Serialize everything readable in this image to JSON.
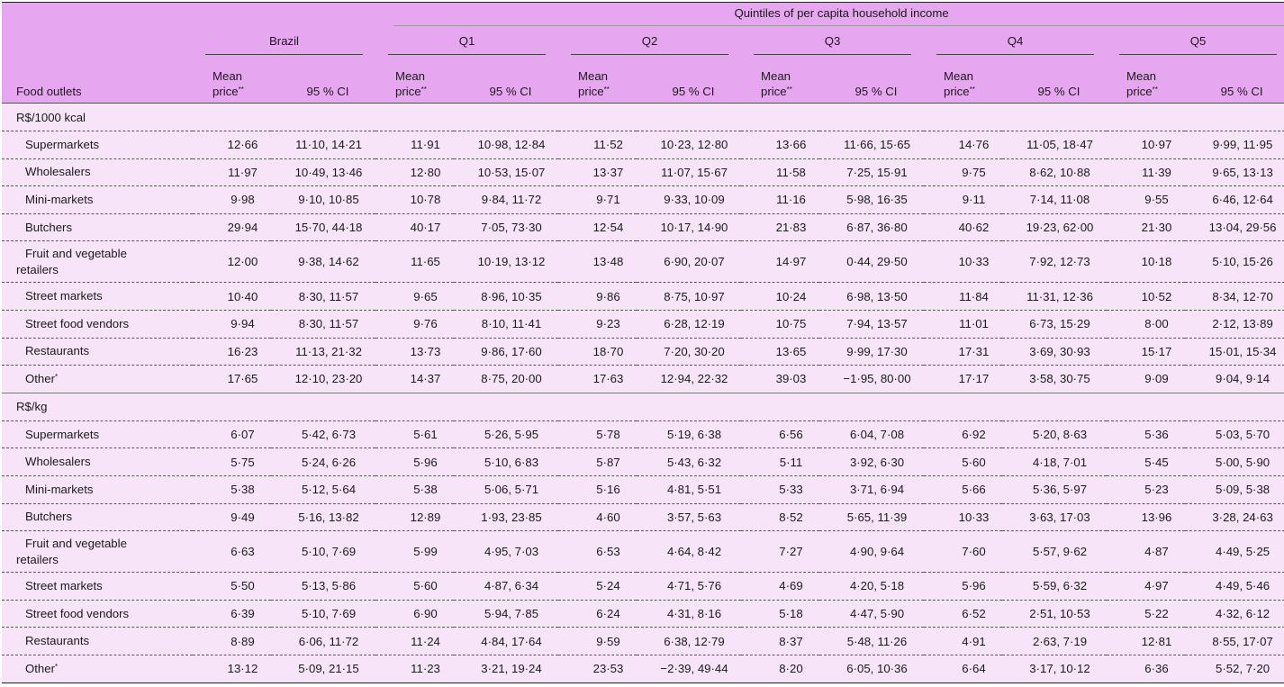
{
  "header": {
    "quintiles_title": "Quintiles of per capita household income",
    "first_col": "Food outlets",
    "groups": [
      "Brazil",
      "Q1",
      "Q2",
      "Q3",
      "Q4",
      "Q5"
    ],
    "mean_line1": "Mean",
    "mean_line2": "price",
    "mean_sup": "**",
    "ci": "95 % CI"
  },
  "sections": [
    {
      "title": "R$/1000 kcal",
      "rows": [
        {
          "name": "Supermarkets",
          "cells": [
            "12·66",
            "11·10, 14·21",
            "11·91",
            "10·98, 12·84",
            "11·52",
            "10·23, 12·80",
            "13·66",
            "11·66, 15·65",
            "14·76",
            "11·05, 18·47",
            "10·97",
            "9·99, 11·95"
          ]
        },
        {
          "name": "Wholesalers",
          "cells": [
            "11·97",
            "10·49, 13·46",
            "12·80",
            "10·53, 15·07",
            "13·37",
            "11·07, 15·67",
            "11·58",
            "7·25, 15·91",
            "9·75",
            "8·62, 10·88",
            "11·39",
            "9·65, 13·13"
          ]
        },
        {
          "name": "Mini-markets",
          "cells": [
            "9·98",
            "9·10, 10·85",
            "10·78",
            "9·84, 11·72",
            "9·71",
            "9·33, 10·09",
            "11·16",
            "5·98, 16·35",
            "9·11",
            "7·14, 11·08",
            "9·55",
            "6·46, 12·64"
          ]
        },
        {
          "name": "Butchers",
          "cells": [
            "29·94",
            "15·70, 44·18",
            "40·17",
            "7·05, 73·30",
            "12·54",
            "10·17, 14·90",
            "21·83",
            "6·87, 36·80",
            "40·62",
            "19·23, 62·00",
            "21·30",
            "13·04, 29·56"
          ]
        },
        {
          "name": "Fruit and vegetable",
          "name2": "retailers",
          "cells": [
            "12·00",
            "9·38, 14·62",
            "11·65",
            "10·19, 13·12",
            "13·48",
            "6·90, 20·07",
            "14·97",
            "0·44, 29·50",
            "10·33",
            "7·92, 12·73",
            "10·18",
            "5·10, 15·26"
          ]
        },
        {
          "name": "Street markets",
          "cells": [
            "10·40",
            "8·30, 11·57",
            "9·65",
            "8·96, 10·35",
            "9·86",
            "8·75, 10·97",
            "10·24",
            "6·98, 13·50",
            "11·84",
            "11·31, 12·36",
            "10·52",
            "8·34, 12·70"
          ]
        },
        {
          "name": "Street food vendors",
          "cells": [
            "9·94",
            "8·30, 11·57",
            "9·76",
            "8·10, 11·41",
            "9·23",
            "6·28, 12·19",
            "10·75",
            "7·94, 13·57",
            "11·01",
            "6·73, 15·29",
            "8·00",
            "2·12, 13·89"
          ]
        },
        {
          "name": "Restaurants",
          "cells": [
            "16·23",
            "11·13, 21·32",
            "13·73",
            "9·86, 17·60",
            "18·70",
            "7·20, 30·20",
            "13·65",
            "9·99, 17·30",
            "17·31",
            "3·69, 30·93",
            "15·17",
            "15·01, 15·34"
          ]
        },
        {
          "name": "Other",
          "sup": "*",
          "cells": [
            "17·65",
            "12·10, 23·20",
            "14·37",
            "8·75, 20·00",
            "17·63",
            "12·94, 22·32",
            "39·03",
            "−1·95, 80·00",
            "17·17",
            "3·58, 30·75",
            "9·09",
            "9·04, 9·14"
          ]
        }
      ]
    },
    {
      "title": "R$/kg",
      "rows": [
        {
          "name": "Supermarkets",
          "cells": [
            "6·07",
            "5·42, 6·73",
            "5·61",
            "5·26, 5·95",
            "5·78",
            "5·19, 6·38",
            "6·56",
            "6·04, 7·08",
            "6·92",
            "5·20, 8·63",
            "5·36",
            "5·03, 5·70"
          ]
        },
        {
          "name": "Wholesalers",
          "cells": [
            "5·75",
            "5·24, 6·26",
            "5·96",
            "5·10, 6·83",
            "5·87",
            "5·43, 6·32",
            "5·11",
            "3·92, 6·30",
            "5·60",
            "4·18, 7·01",
            "5·45",
            "5·00, 5·90"
          ]
        },
        {
          "name": "Mini-markets",
          "cells": [
            "5·38",
            "5·12, 5·64",
            "5·38",
            "5·06, 5·71",
            "5·16",
            "4·81, 5·51",
            "5·33",
            "3·71, 6·94",
            "5·66",
            "5·36, 5·97",
            "5·23",
            "5·09, 5·38"
          ]
        },
        {
          "name": "Butchers",
          "cells": [
            "9·49",
            "5·16, 13·82",
            "12·89",
            "1·93, 23·85",
            "4·60",
            "3·57, 5·63",
            "8·52",
            "5·65, 11·39",
            "10·33",
            "3·63, 17·03",
            "13·96",
            "3·28, 24·63"
          ]
        },
        {
          "name": "Fruit and vegetable",
          "name2": "retailers",
          "cells": [
            "6·63",
            "5·10, 7·69",
            "5·99",
            "4·95, 7·03",
            "6·53",
            "4·64, 8·42",
            "7·27",
            "4·90, 9·64",
            "7·60",
            "5·57, 9·62",
            "4·87",
            "4·49, 5·25"
          ]
        },
        {
          "name": "Street markets",
          "cells": [
            "5·50",
            "5·13, 5·86",
            "5·60",
            "4·87, 6·34",
            "5·24",
            "4·71, 5·76",
            "4·69",
            "4·20, 5·18",
            "5·96",
            "5·59, 6·32",
            "4·97",
            "4·49, 5·46"
          ]
        },
        {
          "name": "Street food vendors",
          "cells": [
            "6·39",
            "5·10, 7·69",
            "6·90",
            "5·94, 7·85",
            "6·24",
            "4·31, 8·16",
            "5·18",
            "4·47, 5·90",
            "6·52",
            "2·51, 10·53",
            "5·22",
            "4·32, 6·12"
          ]
        },
        {
          "name": "Restaurants",
          "cells": [
            "8·89",
            "6·06, 11·72",
            "11·24",
            "4·84, 17·64",
            "9·59",
            "6·38, 12·79",
            "8·37",
            "5·48, 11·26",
            "4·91",
            "2·63, 7·19",
            "12·81",
            "8·55, 17·07"
          ]
        },
        {
          "name": "Other",
          "sup": "*",
          "cells": [
            "13·12",
            "5·09, 21·15",
            "11·23",
            "3·21, 19·24",
            "23·53",
            "−2·39, 49·44",
            "8·20",
            "6·05, 10·36",
            "6·64",
            "3·17, 10·12",
            "6·36",
            "5·52, 7·20"
          ]
        }
      ]
    }
  ]
}
